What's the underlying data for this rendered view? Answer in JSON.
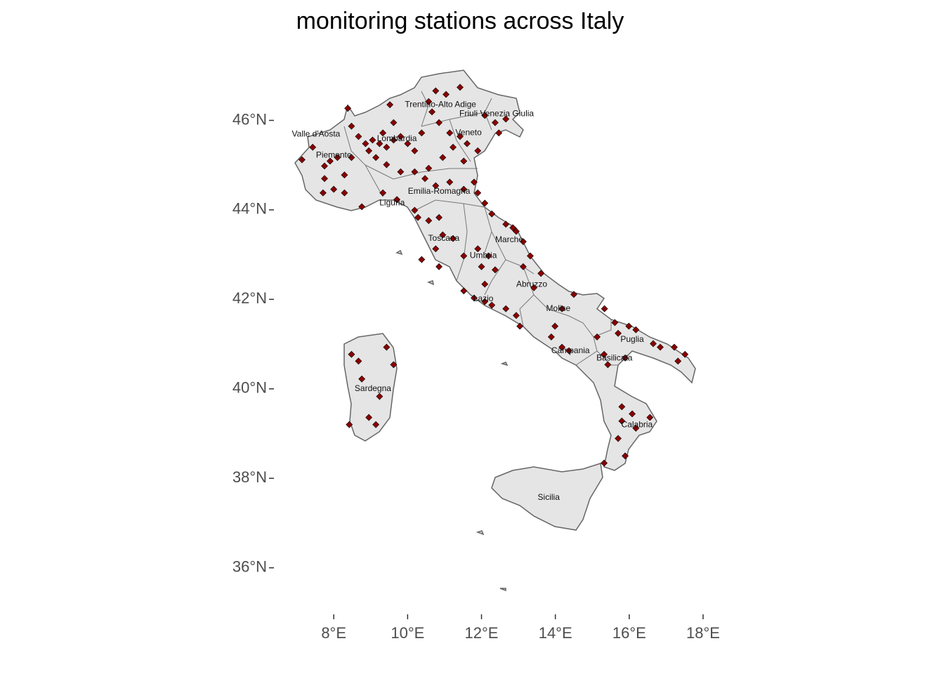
{
  "chart_data": {
    "type": "map",
    "title": "monitoring stations across Italy",
    "xlim": [
      6.38,
      19.0
    ],
    "ylim": [
      34.96,
      47.2
    ],
    "xticks": [
      {
        "value": 8,
        "label": "8°E"
      },
      {
        "value": 10,
        "label": "10°E"
      },
      {
        "value": 12,
        "label": "12°E"
      },
      {
        "value": 14,
        "label": "14°E"
      },
      {
        "value": 16,
        "label": "16°E"
      },
      {
        "value": 18,
        "label": "18°E"
      }
    ],
    "yticks": [
      {
        "value": 36,
        "label": "36°N"
      },
      {
        "value": 38,
        "label": "38°N"
      },
      {
        "value": 40,
        "label": "40°N"
      },
      {
        "value": 42,
        "label": "42°N"
      },
      {
        "value": 44,
        "label": "44°N"
      },
      {
        "value": 46,
        "label": "46°N"
      }
    ],
    "regions": [
      {
        "name": "Trentino-Alto Adige",
        "lon": 10.89,
        "lat": 46.35
      },
      {
        "name": "Friuli Venezia Giulia",
        "lon": 12.41,
        "lat": 46.14
      },
      {
        "name": "Valle d'Aosta",
        "lon": 7.52,
        "lat": 45.69
      },
      {
        "name": "Lombardia",
        "lon": 9.71,
        "lat": 45.59
      },
      {
        "name": "Veneto",
        "lon": 11.65,
        "lat": 45.72
      },
      {
        "name": "Piemonte",
        "lon": 8.0,
        "lat": 45.22
      },
      {
        "name": "Emilia-Romagna",
        "lon": 10.85,
        "lat": 44.41
      },
      {
        "name": "Liguria",
        "lon": 9.58,
        "lat": 44.15
      },
      {
        "name": "Toscana",
        "lon": 10.98,
        "lat": 43.36
      },
      {
        "name": "Marche",
        "lon": 12.75,
        "lat": 43.33
      },
      {
        "name": "Umbria",
        "lon": 12.05,
        "lat": 42.97
      },
      {
        "name": "Abruzzo",
        "lon": 13.36,
        "lat": 42.33
      },
      {
        "name": "Lazio",
        "lon": 12.05,
        "lat": 42.01
      },
      {
        "name": "Molise",
        "lon": 14.08,
        "lat": 41.79
      },
      {
        "name": "Campania",
        "lon": 14.41,
        "lat": 40.85
      },
      {
        "name": "Puglia",
        "lon": 16.08,
        "lat": 41.1
      },
      {
        "name": "Basilicata",
        "lon": 15.6,
        "lat": 40.68
      },
      {
        "name": "Calabria",
        "lon": 16.21,
        "lat": 39.19
      },
      {
        "name": "Sardegna",
        "lon": 9.06,
        "lat": 40.0
      },
      {
        "name": "Sicilia",
        "lon": 13.82,
        "lat": 37.57
      }
    ],
    "color": "#8b0000",
    "stations": {
      "lon": [
        7.75,
        7.9,
        8.1,
        8.48,
        8.29,
        7.75,
        7.71,
        8.0,
        8.29,
        7.14,
        7.43,
        8.38,
        8.48,
        8.67,
        8.86,
        9.05,
        9.24,
        9.43,
        9.33,
        9.62,
        9.81,
        10.0,
        9.62,
        9.52,
        8.95,
        9.14,
        9.43,
        9.81,
        10.19,
        10.38,
        10.66,
        10.76,
        11.04,
        11.42,
        10.57,
        10.85,
        12.09,
        12.37,
        12.66,
        12.47,
        11.14,
        11.42,
        11.61,
        11.23,
        11.9,
        11.52,
        10.95,
        10.19,
        10.47,
        10.76,
        11.14,
        11.52,
        11.9,
        12.09,
        11.8,
        10.57,
        9.33,
        9.71,
        8.76,
        10.19,
        10.28,
        10.57,
        10.85,
        10.95,
        10.76,
        11.23,
        11.52,
        10.85,
        10.38,
        12.28,
        12.66,
        12.94,
        13.13,
        13.32,
        12.85,
        11.9,
        12.19,
        12.37,
        12.0,
        11.52,
        11.8,
        12.09,
        12.28,
        12.66,
        12.94,
        13.04,
        12.09,
        13.61,
        13.13,
        13.42,
        14.18,
        14.5,
        13.89,
        14.18,
        13.99,
        14.37,
        15.33,
        15.61,
        15.99,
        16.18,
        16.65,
        16.84,
        17.22,
        17.51,
        17.32,
        15.13,
        15.7,
        15.32,
        15.42,
        15.89,
        15.8,
        16.08,
        16.56,
        15.8,
        16.18,
        15.7,
        15.89,
        15.32,
        8.48,
        8.67,
        9.43,
        9.62,
        9.24,
        8.95,
        9.14,
        8.42,
        8.76
      ],
      "lat": [
        44.98,
        45.09,
        45.17,
        45.17,
        44.78,
        44.7,
        44.38,
        44.46,
        44.38,
        45.12,
        45.4,
        46.27,
        45.87,
        45.64,
        45.48,
        45.56,
        45.48,
        45.4,
        45.72,
        45.56,
        45.64,
        45.48,
        45.95,
        46.35,
        45.32,
        45.17,
        45.01,
        44.85,
        45.32,
        45.72,
        46.19,
        46.66,
        46.58,
        46.74,
        46.42,
        45.95,
        46.11,
        45.95,
        46.03,
        45.72,
        45.72,
        45.64,
        45.48,
        45.4,
        45.32,
        45.09,
        45.17,
        44.85,
        44.7,
        44.54,
        44.62,
        44.46,
        44.38,
        44.15,
        44.62,
        44.93,
        44.38,
        44.23,
        44.07,
        43.99,
        43.83,
        43.76,
        43.83,
        43.44,
        43.13,
        43.36,
        42.97,
        42.73,
        42.89,
        43.91,
        43.68,
        43.52,
        43.29,
        42.97,
        43.6,
        43.13,
        42.97,
        42.66,
        42.73,
        42.19,
        42.03,
        41.95,
        41.87,
        41.79,
        41.64,
        41.4,
        42.34,
        42.58,
        42.73,
        42.26,
        41.79,
        42.11,
        41.16,
        40.93,
        41.4,
        40.85,
        41.79,
        41.48,
        41.4,
        41.32,
        41.01,
        40.93,
        40.93,
        40.77,
        40.62,
        41.16,
        41.24,
        40.77,
        40.54,
        40.69,
        39.6,
        39.44,
        39.36,
        39.28,
        39.12,
        38.89,
        38.5,
        38.34,
        40.77,
        40.62,
        40.93,
        40.54,
        39.83,
        39.36,
        39.2,
        39.2,
        40.22
      ]
    }
  }
}
